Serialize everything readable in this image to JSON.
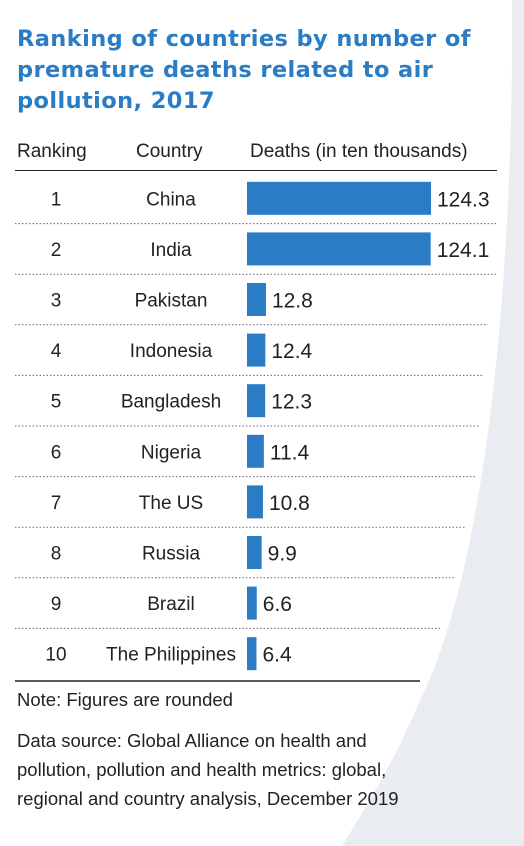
{
  "colors": {
    "accent": "#2a7dc4",
    "bar": "#2a7dc4",
    "background_panel": "#e9edf2",
    "text": "#222222"
  },
  "title": "Ranking of countries by number of premature deaths related to air pollution, 2017",
  "table": {
    "headers": {
      "ranking": "Ranking",
      "country": "Country",
      "deaths": "Deaths (in ten thousands)"
    }
  },
  "chart_data": {
    "type": "bar",
    "orientation": "horizontal",
    "title": "Ranking of countries by number of premature deaths related to air pollution, 2017",
    "value_label": "Deaths (in ten thousands)",
    "rows": [
      {
        "rank": "1",
        "country": "China",
        "value": 124.3,
        "label": "124.3"
      },
      {
        "rank": "2",
        "country": "India",
        "value": 124.1,
        "label": "124.1"
      },
      {
        "rank": "3",
        "country": "Pakistan",
        "value": 12.8,
        "label": "12.8"
      },
      {
        "rank": "4",
        "country": "Indonesia",
        "value": 12.4,
        "label": "12.4"
      },
      {
        "rank": "5",
        "country": "Bangladesh",
        "value": 12.3,
        "label": "12.3"
      },
      {
        "rank": "6",
        "country": "Nigeria",
        "value": 11.4,
        "label": "11.4"
      },
      {
        "rank": "7",
        "country": "The US",
        "value": 10.8,
        "label": "10.8"
      },
      {
        "rank": "8",
        "country": "Russia",
        "value": 9.9,
        "label": "9.9"
      },
      {
        "rank": "9",
        "country": "Brazil",
        "value": 6.6,
        "label": "6.6"
      },
      {
        "rank": "10",
        "country": "The Philippines",
        "value": 6.4,
        "label": "6.4"
      }
    ]
  },
  "note": "Note: Figures are rounded",
  "source": "Data source: Global Alliance on health and pollution, pollution and health metrics: global, regional and country analysis, December 2019"
}
